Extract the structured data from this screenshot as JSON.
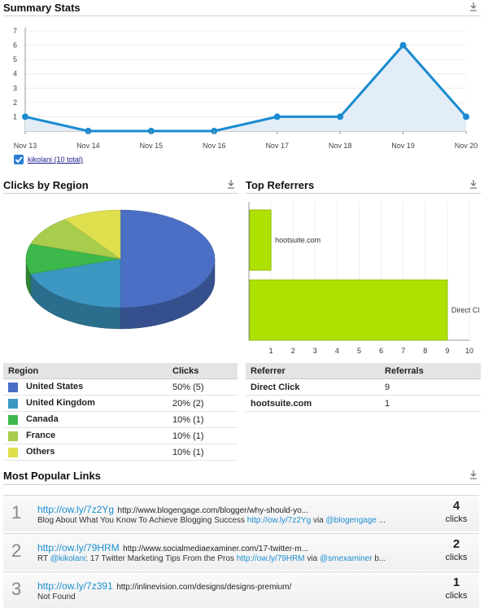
{
  "summary": {
    "title": "Summary Stats",
    "chart_data": {
      "type": "area",
      "x": [
        "Nov 13",
        "Nov 14",
        "Nov 15",
        "Nov 16",
        "Nov 17",
        "Nov 18",
        "Nov 19",
        "Nov 20"
      ],
      "values": [
        1,
        0,
        0,
        0,
        1,
        1,
        6,
        1
      ],
      "yticks": [
        "1",
        "2",
        "3",
        "4",
        "5",
        "6",
        "7"
      ],
      "ylim": [
        0,
        7
      ],
      "color": "#1a8bd0",
      "fill": "#e3edf7"
    },
    "legend_label": "kikolani (10 total)"
  },
  "region": {
    "title": "Clicks by Region",
    "chart_data": {
      "type": "pie",
      "labels": [
        "United States",
        "United Kingdom",
        "Canada",
        "France",
        "Others"
      ],
      "values": [
        5,
        2,
        1,
        1,
        1
      ],
      "colors": [
        "#4a6fc4",
        "#3c98c2",
        "#3db84a",
        "#a8cc4c",
        "#dfe04e"
      ]
    },
    "table": {
      "headers": [
        "Region",
        "Clicks"
      ],
      "rows": [
        {
          "name": "United States",
          "clicks": "50% (5)"
        },
        {
          "name": "United Kingdom",
          "clicks": "20% (2)"
        },
        {
          "name": "Canada",
          "clicks": "10% (1)"
        },
        {
          "name": "France",
          "clicks": "10% (1)"
        },
        {
          "name": "Others",
          "clicks": "10% (1)"
        }
      ]
    }
  },
  "referrers": {
    "title": "Top Referrers",
    "chart_data": {
      "type": "bar",
      "orientation": "horizontal",
      "categories": [
        "hootsuite.com",
        "Direct Cl"
      ],
      "values": [
        1,
        9
      ],
      "xticks": [
        "1",
        "2",
        "3",
        "4",
        "5",
        "6",
        "7",
        "8",
        "9",
        "10"
      ],
      "xlim": [
        0,
        10
      ],
      "color": "#aee000"
    },
    "table": {
      "headers": [
        "Referrer",
        "Referrals"
      ],
      "rows": [
        {
          "name": "Direct Click",
          "count": "9"
        },
        {
          "name": "hootsuite.com",
          "count": "1"
        }
      ]
    }
  },
  "popular": {
    "title": "Most Popular Links",
    "links": [
      {
        "rank": "1",
        "short": "http://ow.ly/7z2Yg",
        "long": "http://www.blogengage.com/blogger/why-should-yo...",
        "desc_pre": "Blog About What You Know To Achieve Blogging Success ",
        "desc_link": "http://ow.ly/7z2Yg",
        "desc_mid": " via ",
        "desc_user": "@blogengage",
        "desc_post": " ...",
        "count": "4",
        "unit": "clicks"
      },
      {
        "rank": "2",
        "short": "http://ow.ly/79HRM",
        "long": "http://www.socialmediaexaminer.com/17-twitter-m...",
        "desc_pre": "RT ",
        "desc_user2": "@kikolani",
        "desc_mid2": ": 17 Twitter Marketing Tips From the Pros ",
        "desc_link": "http://ow.ly/79HRM",
        "desc_mid": " via ",
        "desc_user": "@smexaminer",
        "desc_post": " b...",
        "count": "2",
        "unit": "clicks"
      },
      {
        "rank": "3",
        "short": "http://ow.ly/7z391",
        "long": "http://inlinevision.com/designs/designs-premium/",
        "desc_pre": "Not Found",
        "count": "1",
        "unit": "clicks"
      }
    ]
  }
}
